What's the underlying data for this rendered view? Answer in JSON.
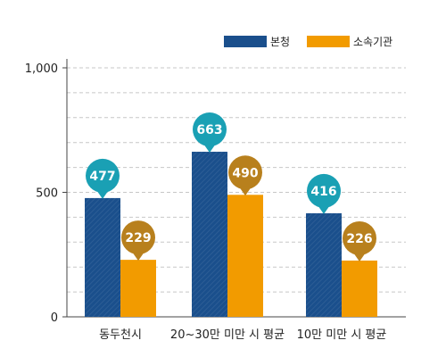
{
  "chart_data": {
    "type": "bar",
    "categories": [
      "동두천시",
      "20~30만 미만 시 평균",
      "10만 미만 시 평균"
    ],
    "series": [
      {
        "name": "본청",
        "values": [
          477,
          663,
          416
        ],
        "color": "#1a4f8c",
        "bubble_color": "#1aa0b4"
      },
      {
        "name": "소속기관",
        "values": [
          229,
          490,
          226
        ],
        "color": "#f29b00",
        "bubble_color": "#b8801d"
      }
    ],
    "yticks": [
      "0",
      "500",
      "1,000"
    ],
    "ylim": [
      0,
      1000
    ],
    "grid": "dashed-horizontal",
    "legend": "top-right"
  }
}
